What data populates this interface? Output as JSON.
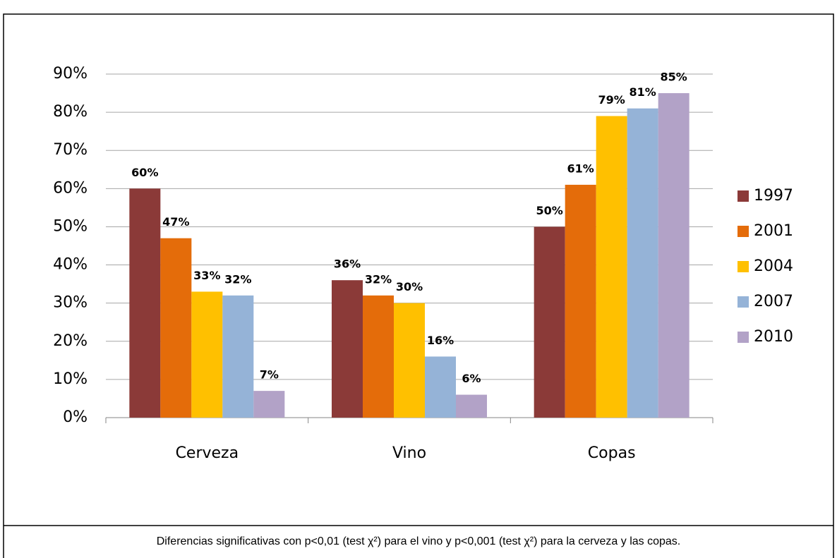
{
  "chart_data": {
    "type": "bar",
    "categories": [
      "Cerveza",
      "Vino",
      "Copas"
    ],
    "series": [
      {
        "name": "1997",
        "color": "#8b3a38",
        "values": [
          60,
          36,
          50
        ],
        "value_labels": [
          "60%",
          "36%",
          "50%"
        ]
      },
      {
        "name": "2001",
        "color": "#e46c0a",
        "values": [
          47,
          32,
          61
        ],
        "value_labels": [
          "47%",
          "32%",
          "61%"
        ]
      },
      {
        "name": "2004",
        "color": "#ffc000",
        "values": [
          33,
          30,
          79
        ],
        "value_labels": [
          "33%",
          "30%",
          "79%"
        ]
      },
      {
        "name": "2007",
        "color": "#95b3d7",
        "values": [
          32,
          16,
          81
        ],
        "value_labels": [
          "32%",
          "16%",
          "81%"
        ]
      },
      {
        "name": "2010",
        "color": "#b2a2c7",
        "values": [
          7,
          6,
          85
        ],
        "value_labels": [
          "7%",
          "6%",
          "85%"
        ]
      }
    ],
    "ylim": [
      0,
      90
    ],
    "yticks": [
      {
        "value": 0,
        "label": "0%"
      },
      {
        "value": 10,
        "label": "10%"
      },
      {
        "value": 20,
        "label": "20%"
      },
      {
        "value": 30,
        "label": "30%"
      },
      {
        "value": 40,
        "label": "40%"
      },
      {
        "value": 50,
        "label": "50%"
      },
      {
        "value": 60,
        "label": "60%"
      },
      {
        "value": 70,
        "label": "70%"
      },
      {
        "value": 80,
        "label": "80%"
      },
      {
        "value": 90,
        "label": "90%"
      }
    ],
    "grid": true,
    "legend": "right",
    "annotation": "Diferencias significativas con p<0,01 (test χ²) para el vino y p<0,001 (test χ²) para la cerveza y las copas."
  }
}
